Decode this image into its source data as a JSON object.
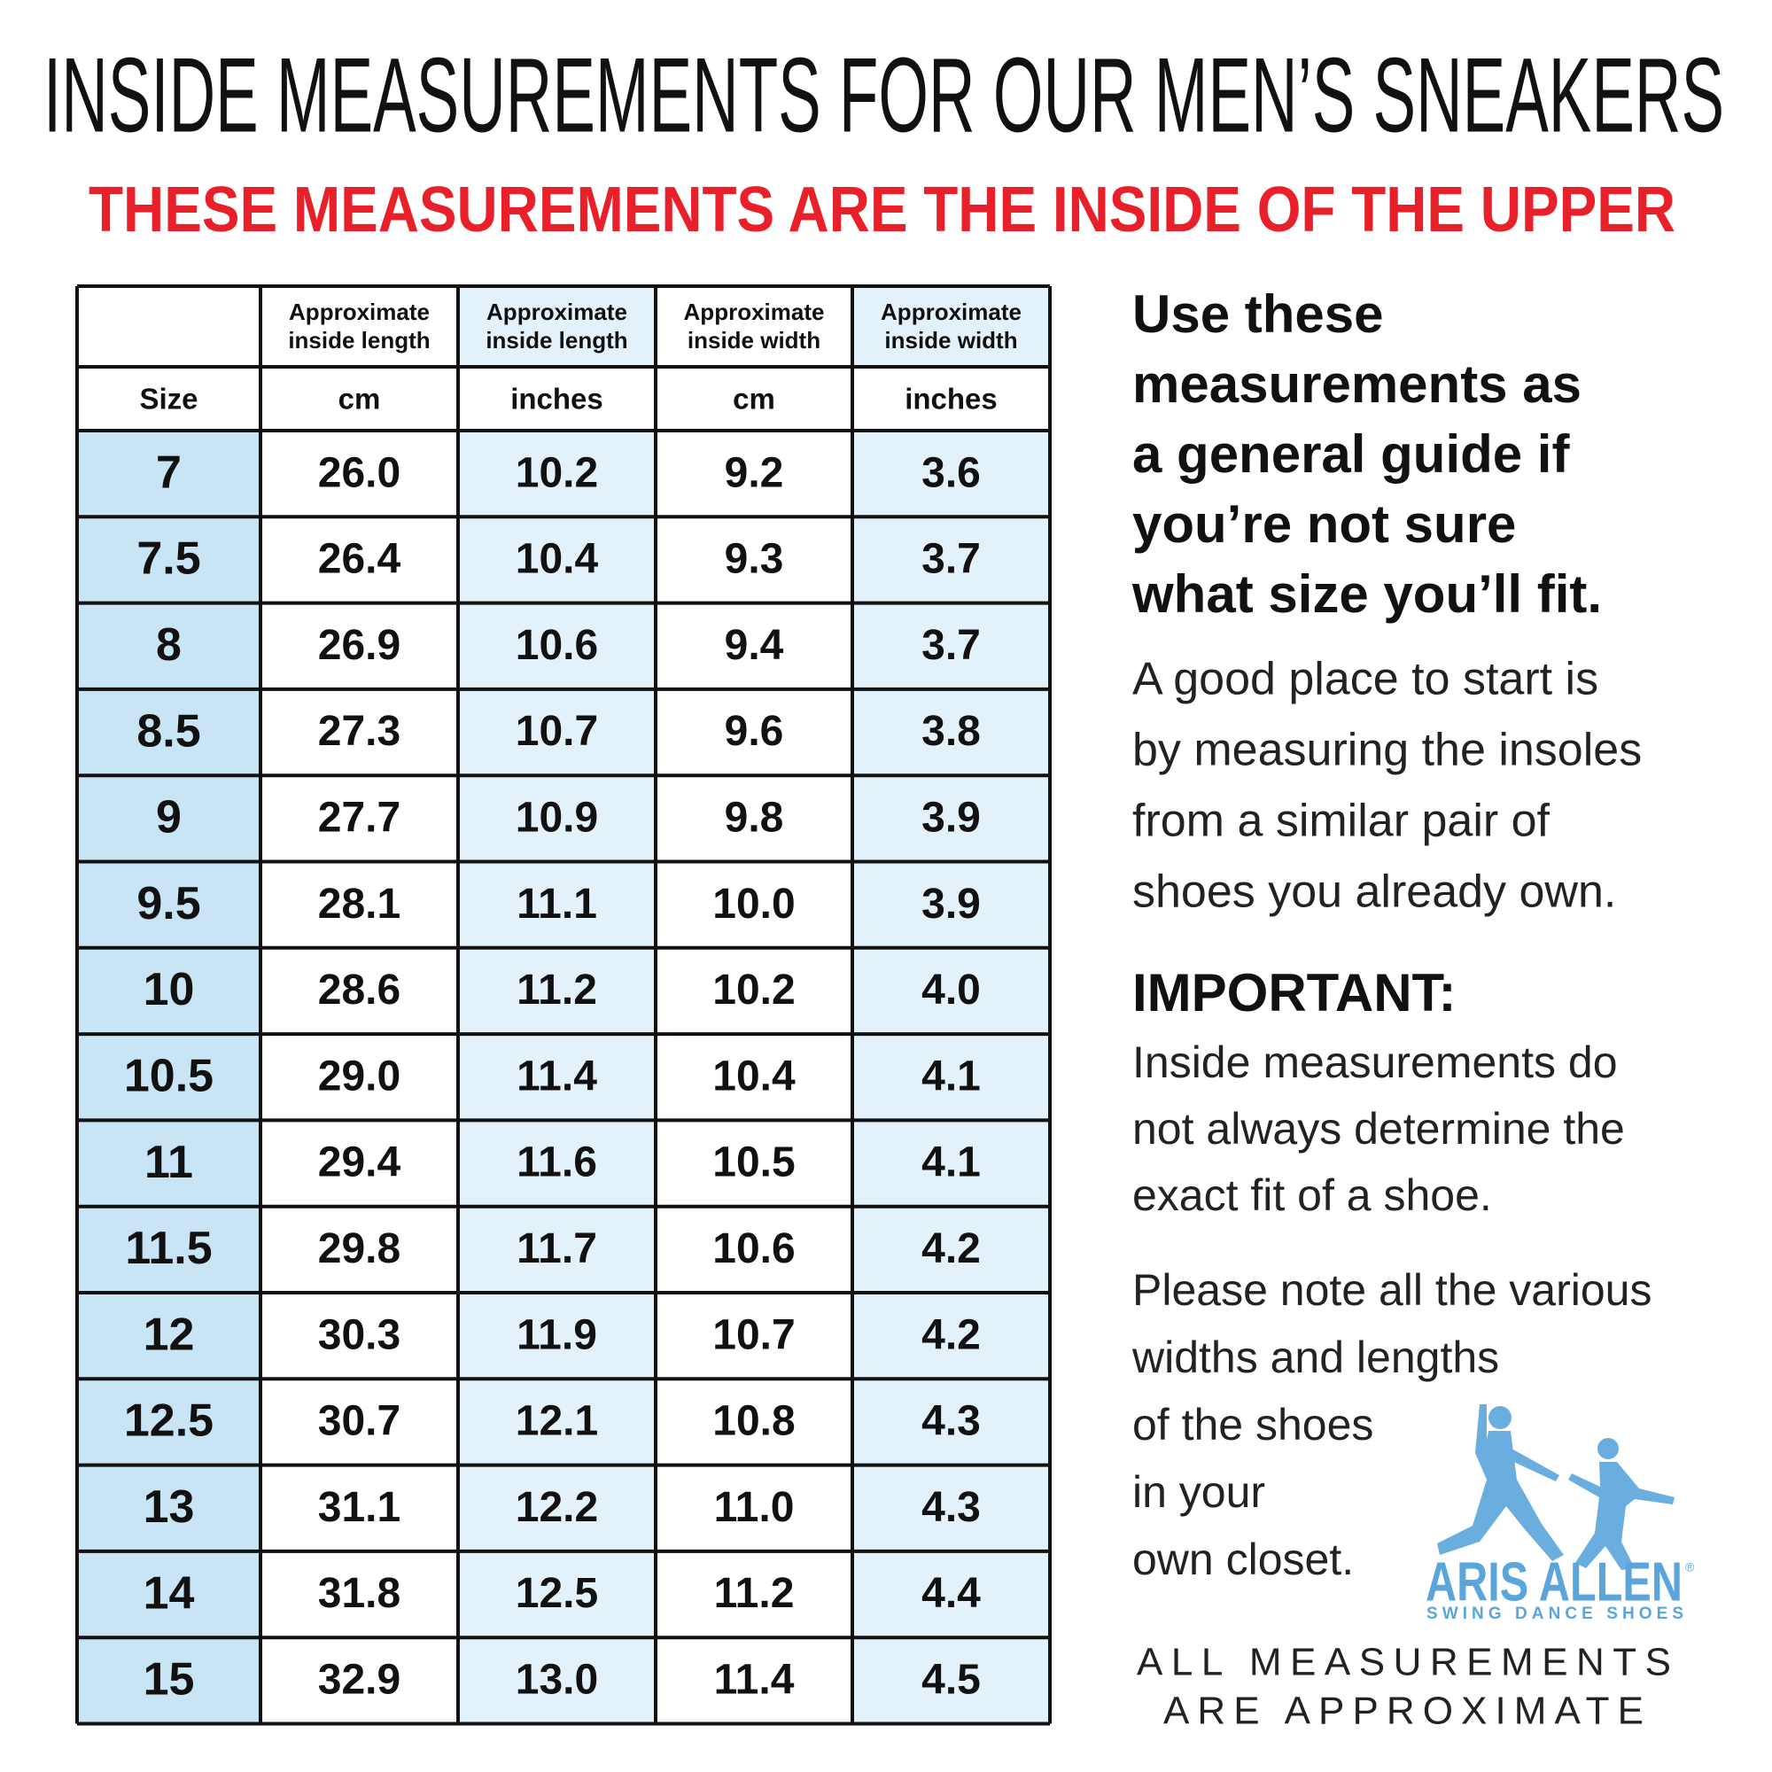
{
  "header": {
    "title": "INSIDE MEASUREMENTS FOR OUR MEN’S SNEAKERS",
    "subtitle": "THESE MEASUREMENTS ARE THE INSIDE OF THE UPPER"
  },
  "table": {
    "header_row": [
      [
        "Approximate",
        "inside length"
      ],
      [
        "Approximate",
        "inside length"
      ],
      [
        "Approximate",
        "inside width"
      ],
      [
        "Approximate",
        "inside width"
      ]
    ],
    "units_row": [
      "Size",
      "cm",
      "inches",
      "cm",
      "inches"
    ],
    "rows": [
      [
        "7",
        "26.0",
        "10.2",
        "9.2",
        "3.6"
      ],
      [
        "7.5",
        "26.4",
        "10.4",
        "9.3",
        "3.7"
      ],
      [
        "8",
        "26.9",
        "10.6",
        "9.4",
        "3.7"
      ],
      [
        "8.5",
        "27.3",
        "10.7",
        "9.6",
        "3.8"
      ],
      [
        "9",
        "27.7",
        "10.9",
        "9.8",
        "3.9"
      ],
      [
        "9.5",
        "28.1",
        "11.1",
        "10.0",
        "3.9"
      ],
      [
        "10",
        "28.6",
        "11.2",
        "10.2",
        "4.0"
      ],
      [
        "10.5",
        "29.0",
        "11.4",
        "10.4",
        "4.1"
      ],
      [
        "11",
        "29.4",
        "11.6",
        "10.5",
        "4.1"
      ],
      [
        "11.5",
        "29.8",
        "11.7",
        "10.6",
        "4.2"
      ],
      [
        "12",
        "30.3",
        "11.9",
        "10.7",
        "4.2"
      ],
      [
        "12.5",
        "30.7",
        "12.1",
        "10.8",
        "4.3"
      ],
      [
        "13",
        "31.1",
        "12.2",
        "11.0",
        "4.3"
      ],
      [
        "14",
        "31.8",
        "12.5",
        "11.2",
        "4.4"
      ],
      [
        "15",
        "32.9",
        "13.0",
        "11.4",
        "4.5"
      ]
    ]
  },
  "guide": {
    "heading_lines": [
      "Use these",
      "measurements as",
      "a general guide if",
      "you’re not sure",
      "what size you’ll fit."
    ],
    "paragraph_lines": [
      "A good place to start is",
      "by measuring the insoles",
      "from a similar pair of",
      "shoes you already own."
    ]
  },
  "important": {
    "label": "IMPORTANT:",
    "lines": [
      "Inside measurements do",
      "not always determine the",
      "exact fit of a shoe."
    ]
  },
  "note": {
    "lines": [
      "Please note all the various",
      "widths and lengths",
      "of the shoes",
      "in your",
      "own closet."
    ]
  },
  "logo": {
    "name": "ARIS ALLEN",
    "mark": "®",
    "tagline": "SWING DANCE SHOES"
  },
  "footer": {
    "lines": [
      "ALL MEASUREMENTS",
      "ARE APPROXIMATE"
    ]
  }
}
